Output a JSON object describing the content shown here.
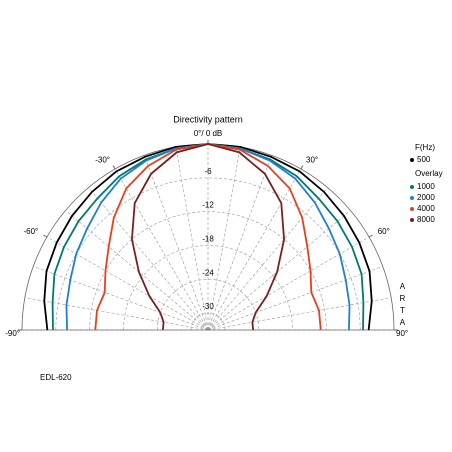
{
  "chart_data": {
    "type": "polar",
    "title": "Directivity pattern",
    "legend_title": "F(Hz)",
    "legend_subtitle": "Overlay",
    "side_label": "ARTA",
    "caption": "EDL-620",
    "x": [
      -90,
      -80,
      -70,
      -60,
      -50,
      -40,
      -30,
      -20,
      -10,
      0,
      10,
      20,
      30,
      40,
      50,
      60,
      70,
      80,
      90
    ],
    "xlim": [
      -90,
      90
    ],
    "xticks": [
      {
        "value": -90,
        "label": "-90°"
      },
      {
        "value": -60,
        "label": "-60°"
      },
      {
        "value": -30,
        "label": "-30°"
      },
      {
        "value": 0,
        "label": "0°/ 0 dB"
      },
      {
        "value": 30,
        "label": "30°"
      },
      {
        "value": 60,
        "label": "60°"
      },
      {
        "value": 90,
        "label": "90°"
      }
    ],
    "ylim": [
      -33,
      0
    ],
    "yticks": [
      -30,
      -24,
      -18,
      -12,
      -6
    ],
    "grid": true,
    "series": [
      {
        "name": "500",
        "color": "#000000",
        "values": [
          -4.5,
          -3.5,
          -2.5,
          -2,
          -1.5,
          -1,
          -0.5,
          -0.3,
          0,
          0,
          0,
          -0.3,
          -0.5,
          -1,
          -1.5,
          -2,
          -2.5,
          -3.5,
          -4.5
        ]
      },
      {
        "name": "1000",
        "color": "#007a6e",
        "values": [
          -5.5,
          -5,
          -4,
          -3.5,
          -3,
          -2.5,
          -1.5,
          -0.8,
          -0.3,
          0,
          -0.3,
          -0.8,
          -1.5,
          -2.5,
          -3,
          -3.5,
          -4,
          -5,
          -5.5
        ]
      },
      {
        "name": "2000",
        "color": "#1f7fd6",
        "values": [
          -8,
          -7.5,
          -7,
          -6,
          -5,
          -3.5,
          -2,
          -1,
          -0.3,
          0,
          -0.3,
          -1,
          -2,
          -3.5,
          -5,
          -6,
          -7,
          -7.5,
          -8
        ]
      },
      {
        "name": "4000",
        "color": "#e8401c",
        "values": [
          -13,
          -13,
          -13.5,
          -12,
          -10,
          -7,
          -4,
          -2,
          -0.5,
          0,
          -0.5,
          -2,
          -4,
          -7,
          -10,
          -12,
          -13.5,
          -13,
          -13
        ]
      },
      {
        "name": "8000",
        "color": "#7a1f1f",
        "values": [
          -25,
          -25,
          -24,
          -21,
          -17,
          -12,
          -7,
          -3.5,
          -1,
          0,
          -1,
          -3.5,
          -7,
          -12,
          -17,
          -21,
          -24,
          -25,
          -25
        ]
      }
    ]
  }
}
